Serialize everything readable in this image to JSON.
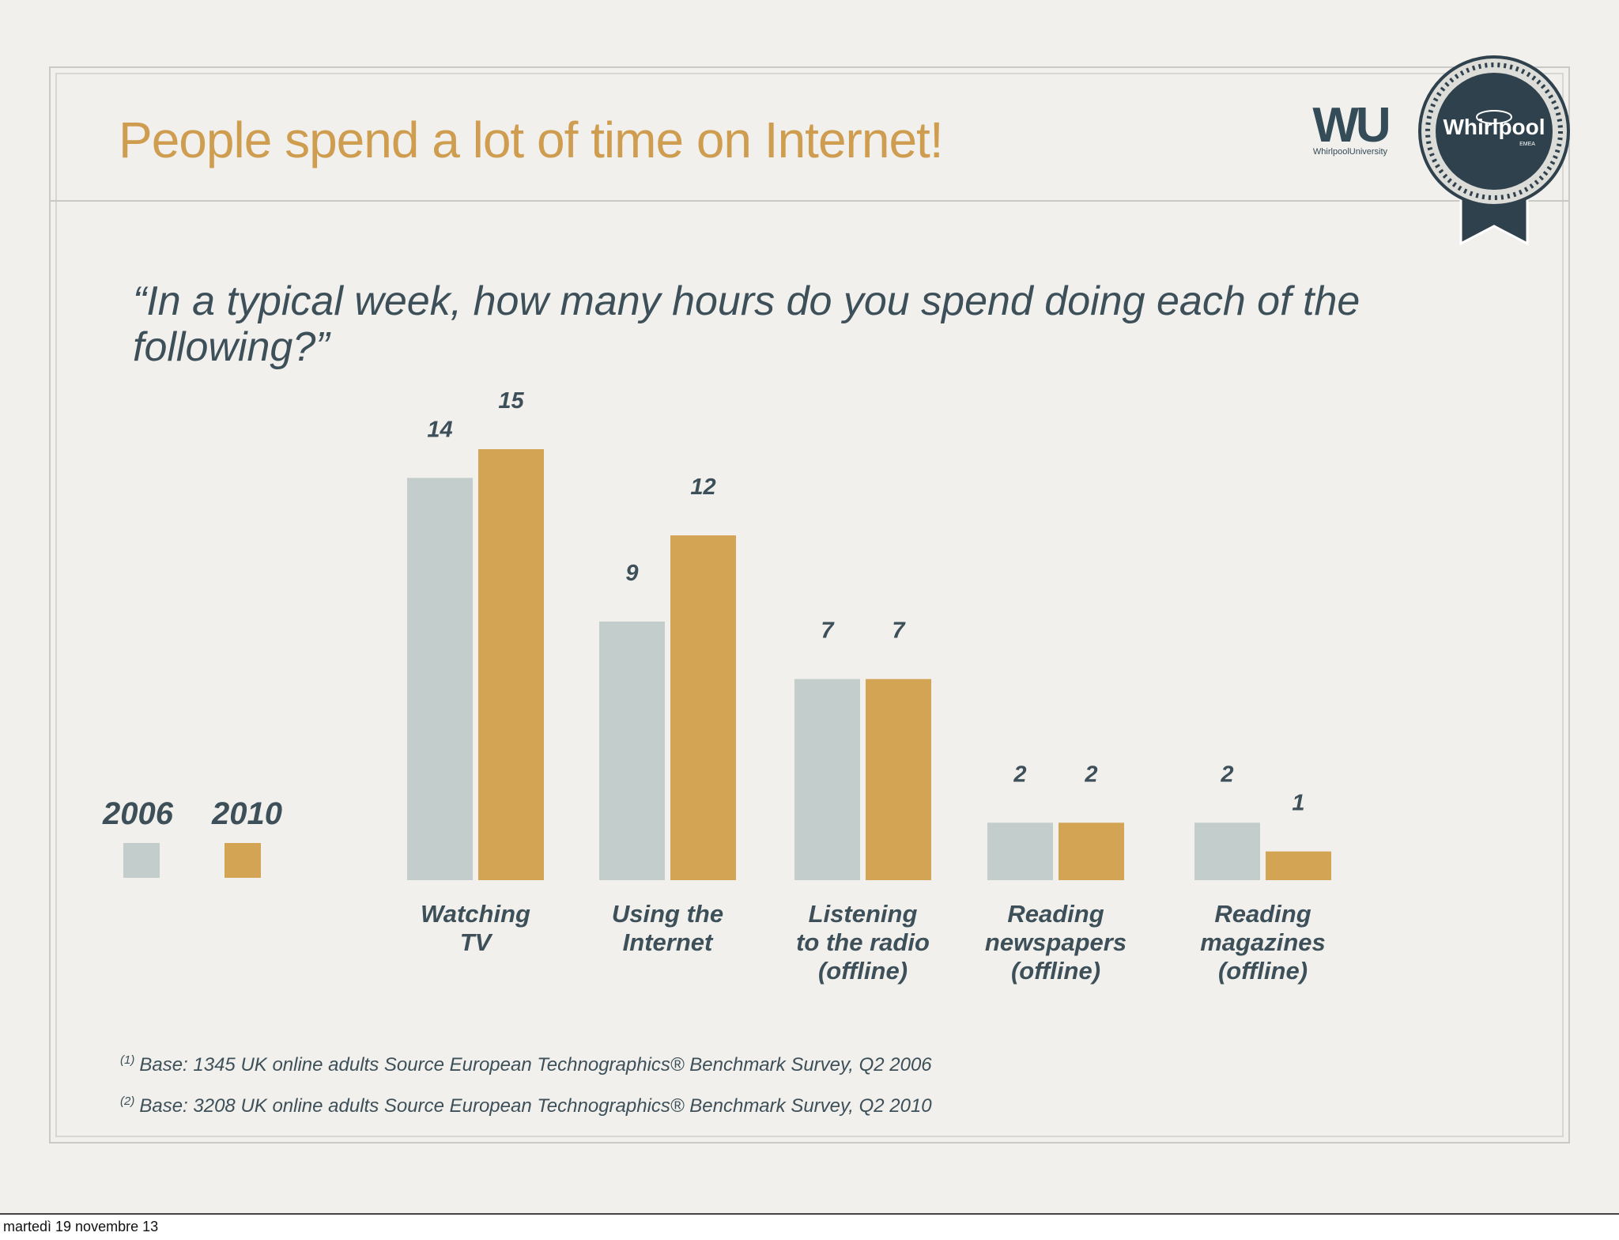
{
  "slide": {
    "title": "People spend a lot of time on Internet!",
    "question": "“In a typical week, how many hours do you spend doing each of the following?”"
  },
  "logos": {
    "wu_mark": "WU",
    "wu_subtitle": "WhirlpoolUniversity",
    "seal_text": "Whirlpool",
    "seal_subtext": "EMEA"
  },
  "legend": [
    {
      "label": "2006",
      "color": "#c3cdcc"
    },
    {
      "label": "2010",
      "color": "#d4a455"
    }
  ],
  "chart_data": {
    "type": "bar",
    "title": "",
    "xlabel": "",
    "ylabel": "",
    "categories": [
      "Watching TV",
      "Using the Internet",
      "Listening to the radio (offline)",
      "Reading newspapers (offline)",
      "Reading magazines (offline)"
    ],
    "series": [
      {
        "name": "2006",
        "values": [
          14,
          9,
          7,
          2,
          2
        ],
        "color": "#c3cdcc"
      },
      {
        "name": "2010",
        "values": [
          15,
          12,
          7,
          2,
          1
        ],
        "color": "#d4a455"
      }
    ],
    "ylim": [
      0,
      15
    ],
    "grid": false,
    "legend_position": "left",
    "data_labels": true
  },
  "footnotes": [
    {
      "marker": "(1)",
      "text": "Base: 1345 UK online adults Source European Technographics®  Benchmark Survey, Q2 2006"
    },
    {
      "marker": "(2)",
      "text": "Base: 3208 UK online adults Source European Technographics®  Benchmark Survey, Q2 2010"
    }
  ],
  "date_stamp": "martedì 19 novembre 13"
}
